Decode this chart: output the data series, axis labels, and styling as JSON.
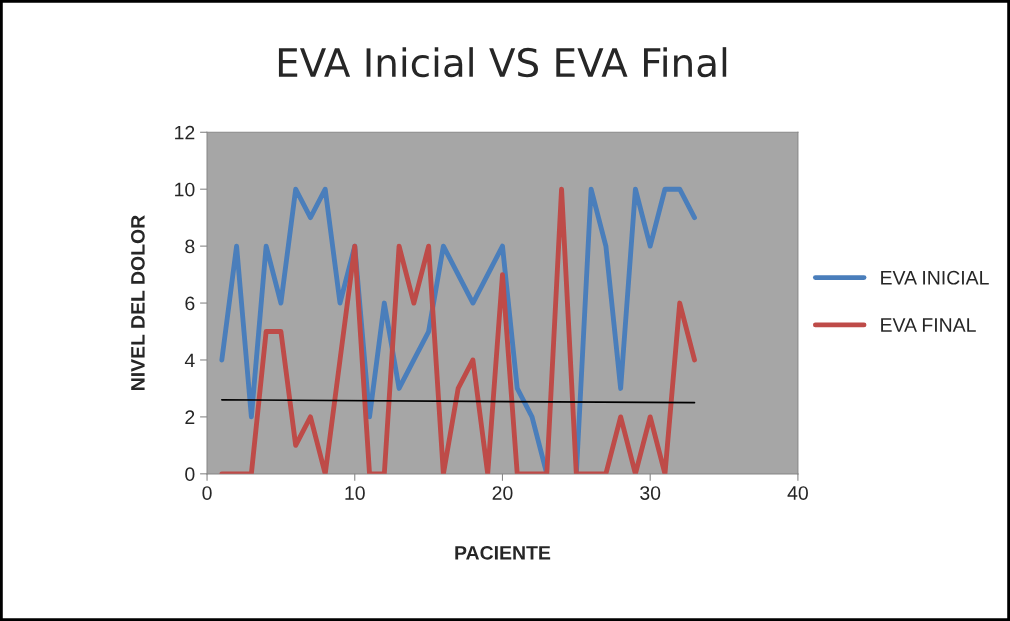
{
  "chart_data": {
    "type": "line",
    "title": "EVA Inicial VS EVA Final",
    "xlabel": "PACIENTE",
    "ylabel": "NIVEL DEL DOLOR",
    "x": [
      1,
      2,
      3,
      4,
      5,
      6,
      7,
      8,
      9,
      10,
      11,
      12,
      13,
      14,
      15,
      16,
      17,
      18,
      19,
      20,
      21,
      22,
      23,
      24,
      25,
      26,
      27,
      28,
      29,
      30,
      31,
      32,
      33
    ],
    "series": [
      {
        "name": "EVA INICIAL",
        "color": "#4a7ebb",
        "values": [
          4,
          8,
          2,
          8,
          6,
          10,
          9,
          10,
          6,
          8,
          2,
          6,
          3,
          4,
          5,
          8,
          7,
          6,
          7,
          8,
          3,
          2,
          0,
          null,
          0,
          10,
          8,
          3,
          10,
          8,
          10,
          10,
          9
        ]
      },
      {
        "name": "EVA FINAL",
        "color": "#be4b48",
        "values": [
          0,
          0,
          0,
          5,
          5,
          1,
          2,
          0,
          4,
          8,
          0,
          0,
          8,
          6,
          8,
          0,
          3,
          4,
          0,
          7,
          0,
          0,
          0,
          10,
          0,
          0,
          0,
          2,
          0,
          2,
          0,
          6,
          4
        ]
      },
      {
        "type": "line",
        "color": "#000000",
        "x": [
          1,
          33
        ],
        "values": [
          2.6,
          2.5
        ]
      }
    ],
    "xlim": [
      0,
      40
    ],
    "xticks": [
      0,
      10,
      20,
      30,
      40
    ],
    "ylim": [
      0,
      12
    ],
    "yticks": [
      0,
      2,
      4,
      6,
      8,
      10,
      12
    ],
    "grid": false,
    "legend": "right",
    "marker": "none",
    "line_style": "solid"
  }
}
